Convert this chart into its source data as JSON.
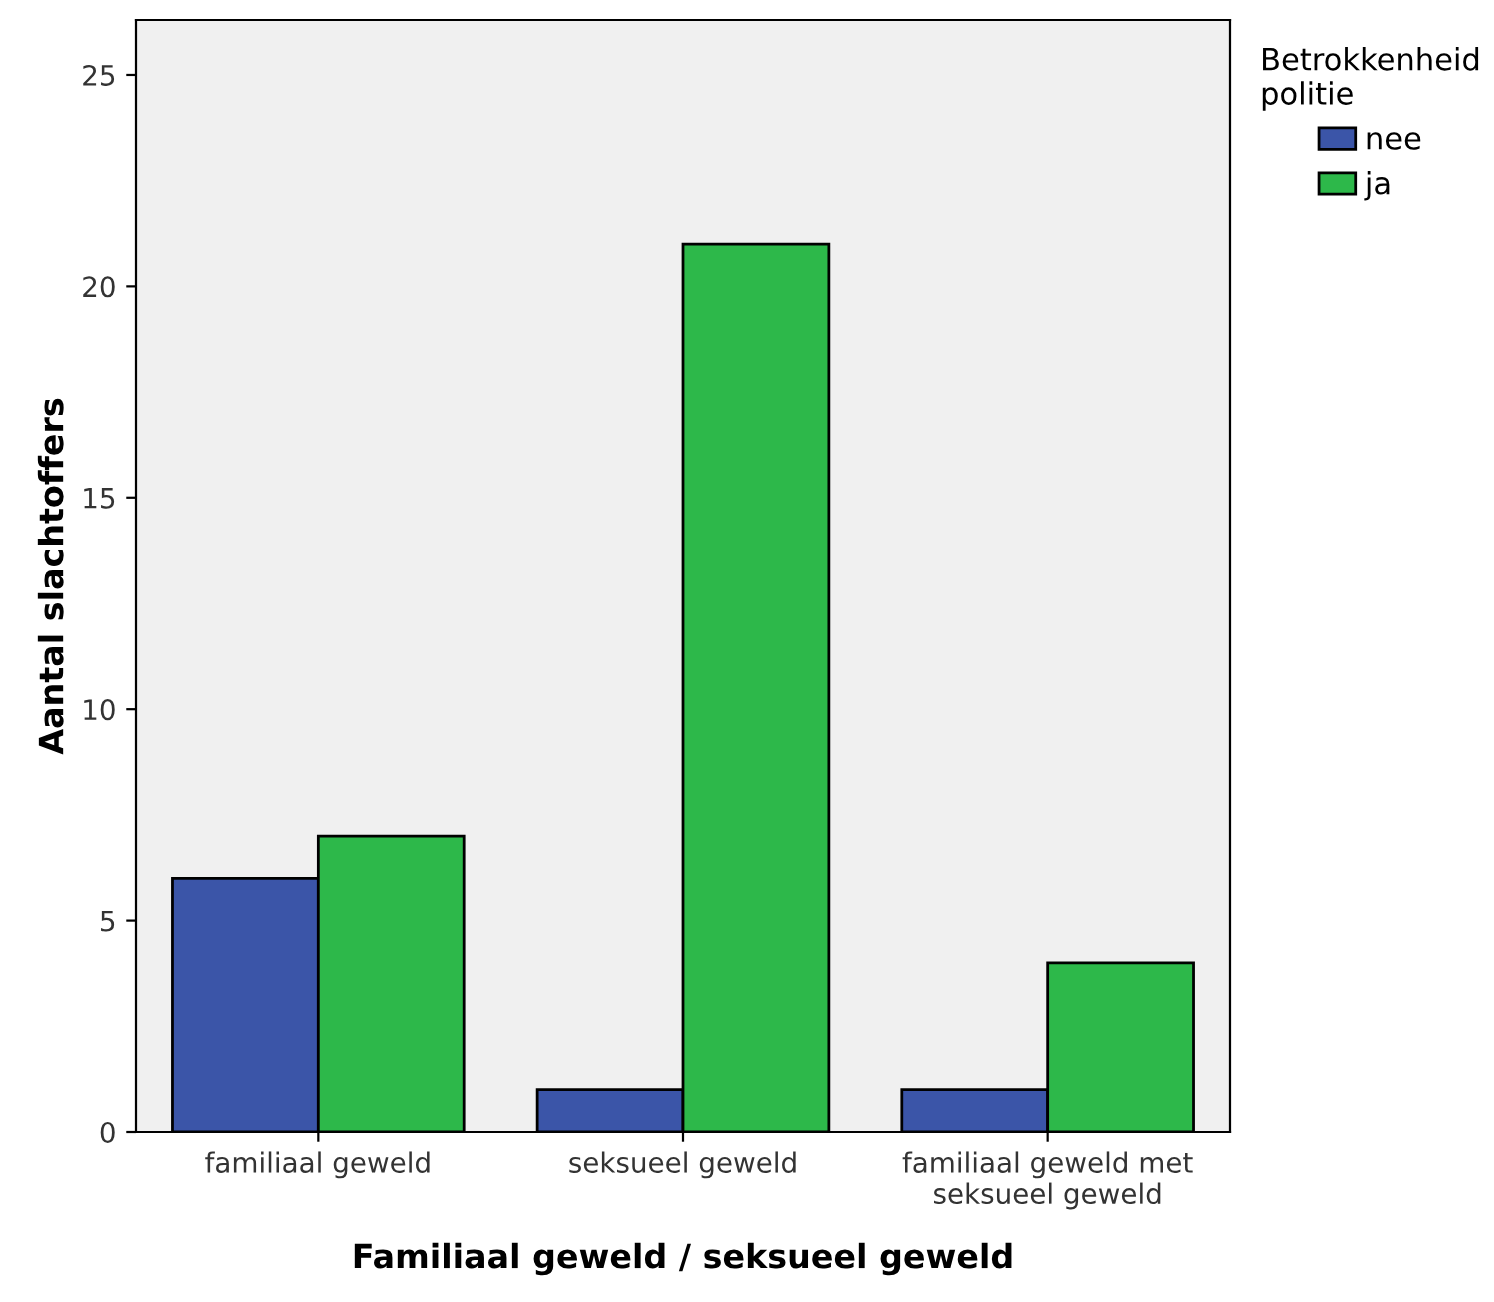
{
  "chart_data": {
    "type": "bar",
    "xlabel": "Familiaal geweld / seksueel geweld",
    "ylabel": "Aantal slachtoffers",
    "legend_title": "Betrokkenheid\npolitie",
    "categories": [
      "familiaal geweld",
      "seksueel geweld",
      "familiaal geweld met\nseksueel geweld"
    ],
    "series": [
      {
        "name": "nee",
        "color": "#3b55a8",
        "values": [
          6,
          1,
          1
        ]
      },
      {
        "name": "ja",
        "color": "#2db84a",
        "values": [
          7,
          21,
          4
        ]
      }
    ],
    "ylim": [
      0,
      26.3
    ],
    "yticks": [
      0,
      5,
      10,
      15,
      20,
      25
    ],
    "grid": false,
    "legend": "top right"
  }
}
